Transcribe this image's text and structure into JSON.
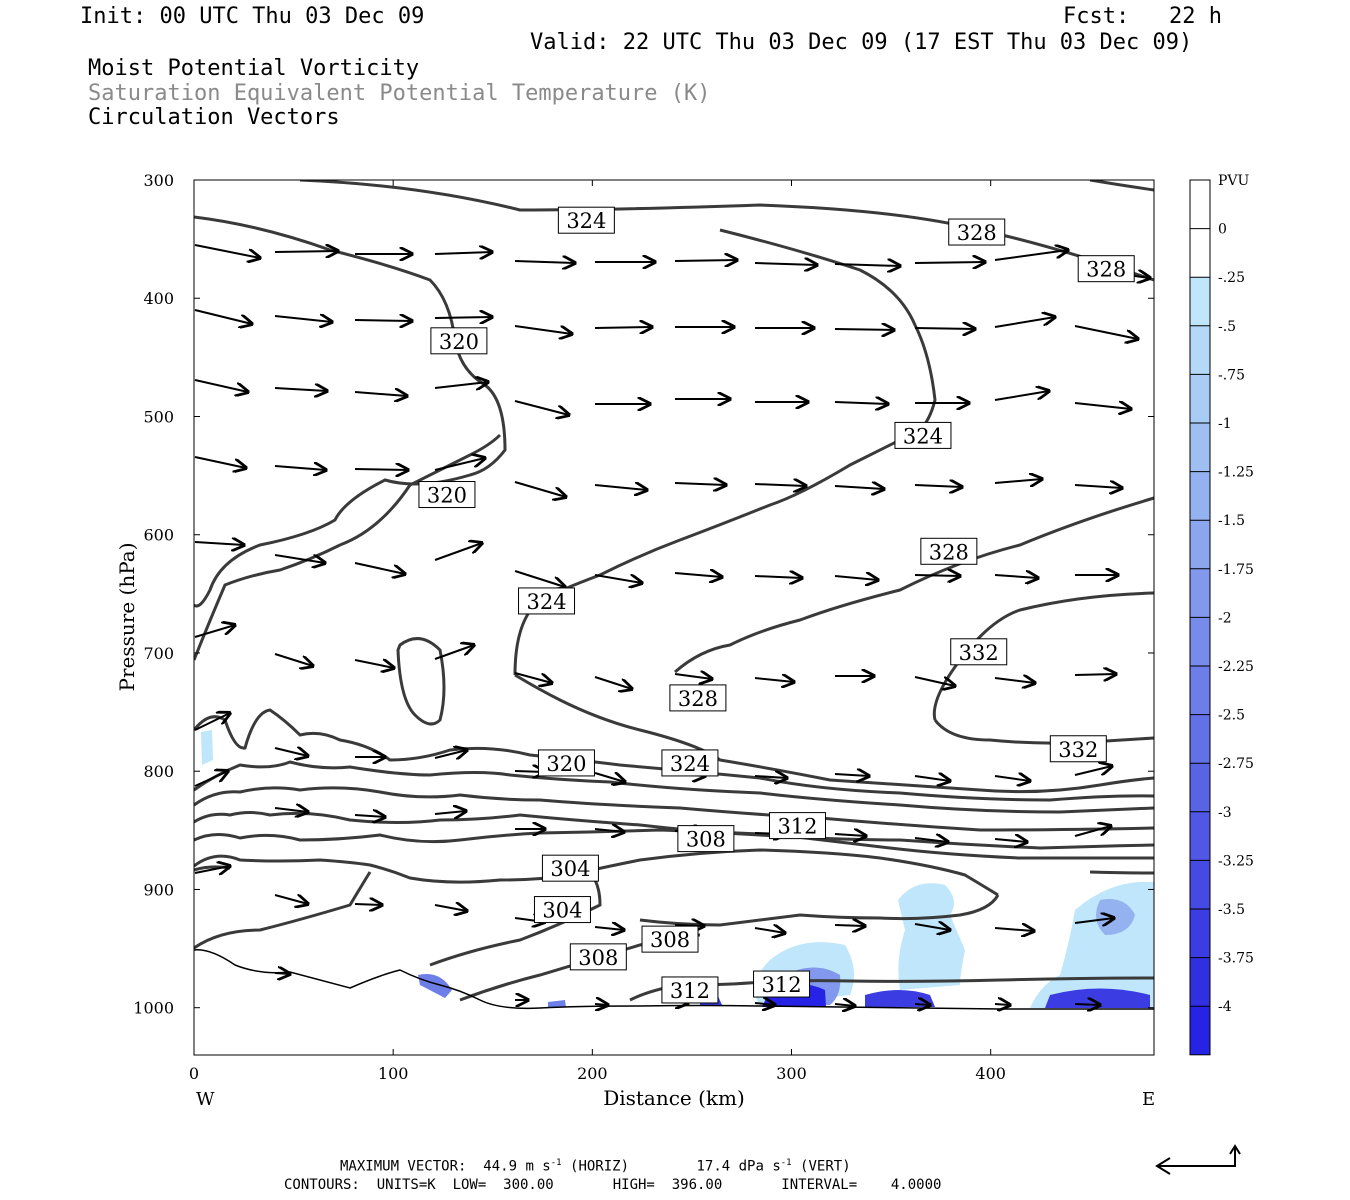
{
  "header": {
    "init": "Init: 00 UTC Thu 03 Dec 09",
    "fcst": "Fcst:   22 h",
    "valid": "Valid: 22 UTC Thu 03 Dec 09 (17 EST Thu 03 Dec 09)",
    "field1": "Moist Potential Vorticity",
    "field2": "Saturation Equivalent Potential Temperature (K)",
    "field3": "Circulation Vectors"
  },
  "footer": {
    "line1_label": "MAXIMUM VECTOR:",
    "line1_horiz": "44.9 m s",
    "line1_horiz_sup": "-1",
    "line1_horiz_tag": "(HORIZ)",
    "line1_vert": "17.4 dPa s",
    "line1_vert_sup": "-1",
    "line1_vert_tag": "(VERT)",
    "line2": "CONTOURS:  UNITS=K  LOW=  300.00       HIGH=  396.00       INTERVAL=    4.0000"
  },
  "chart_data": {
    "type": "cross-section",
    "xlabel": "Distance (km)",
    "ylabel": "Pressure (hPa)",
    "x_left_label": "W",
    "x_right_label": "E",
    "xlim": [
      0,
      482
    ],
    "ylim": [
      1040,
      300
    ],
    "x_ticks": [
      0,
      100,
      200,
      300,
      400
    ],
    "y_ticks": [
      300,
      400,
      500,
      600,
      700,
      800,
      900,
      1000
    ],
    "colorbar": {
      "title": "PVU",
      "levels": [
        "0",
        "-.25",
        "-.5",
        "-.75",
        "-1",
        "-1.25",
        "-1.5",
        "-1.75",
        "-2",
        "-2.25",
        "-2.5",
        "-2.75",
        "-3",
        "-3.25",
        "-3.5",
        "-3.75",
        "-4"
      ],
      "colors": [
        "#ffffff",
        "#ffffff",
        "#bfe6fb",
        "#b4d9f8",
        "#a9ccf5",
        "#9fbff2",
        "#95b2f0",
        "#8ba5ee",
        "#8198ec",
        "#778bea",
        "#6d7ee8",
        "#6371e6",
        "#5964e5",
        "#4f57e4",
        "#454ae3",
        "#3b3de2",
        "#3130e1",
        "#2723e6"
      ]
    },
    "contour_labels": [
      {
        "text": "324",
        "x": 197,
        "p": 334
      },
      {
        "text": "328",
        "x": 393,
        "p": 344
      },
      {
        "text": "328",
        "x": 458,
        "p": 375
      },
      {
        "text": "320",
        "x": 133,
        "p": 436
      },
      {
        "text": "324",
        "x": 366,
        "p": 516
      },
      {
        "text": "320",
        "x": 127,
        "p": 566
      },
      {
        "text": "328",
        "x": 379,
        "p": 614
      },
      {
        "text": "324",
        "x": 177,
        "p": 656
      },
      {
        "text": "332",
        "x": 394,
        "p": 699
      },
      {
        "text": "328",
        "x": 253,
        "p": 738
      },
      {
        "text": "332",
        "x": 444,
        "p": 781
      },
      {
        "text": "320",
        "x": 187,
        "p": 793
      },
      {
        "text": "324",
        "x": 249,
        "p": 793
      },
      {
        "text": "312",
        "x": 303,
        "p": 846
      },
      {
        "text": "308",
        "x": 257,
        "p": 857
      },
      {
        "text": "304",
        "x": 189,
        "p": 882
      },
      {
        "text": "304",
        "x": 185,
        "p": 917
      },
      {
        "text": "308",
        "x": 239,
        "p": 942
      },
      {
        "text": "308",
        "x": 203,
        "p": 957
      },
      {
        "text": "312",
        "x": 249,
        "p": 985
      },
      {
        "text": "312",
        "x": 295,
        "p": 980
      }
    ]
  }
}
